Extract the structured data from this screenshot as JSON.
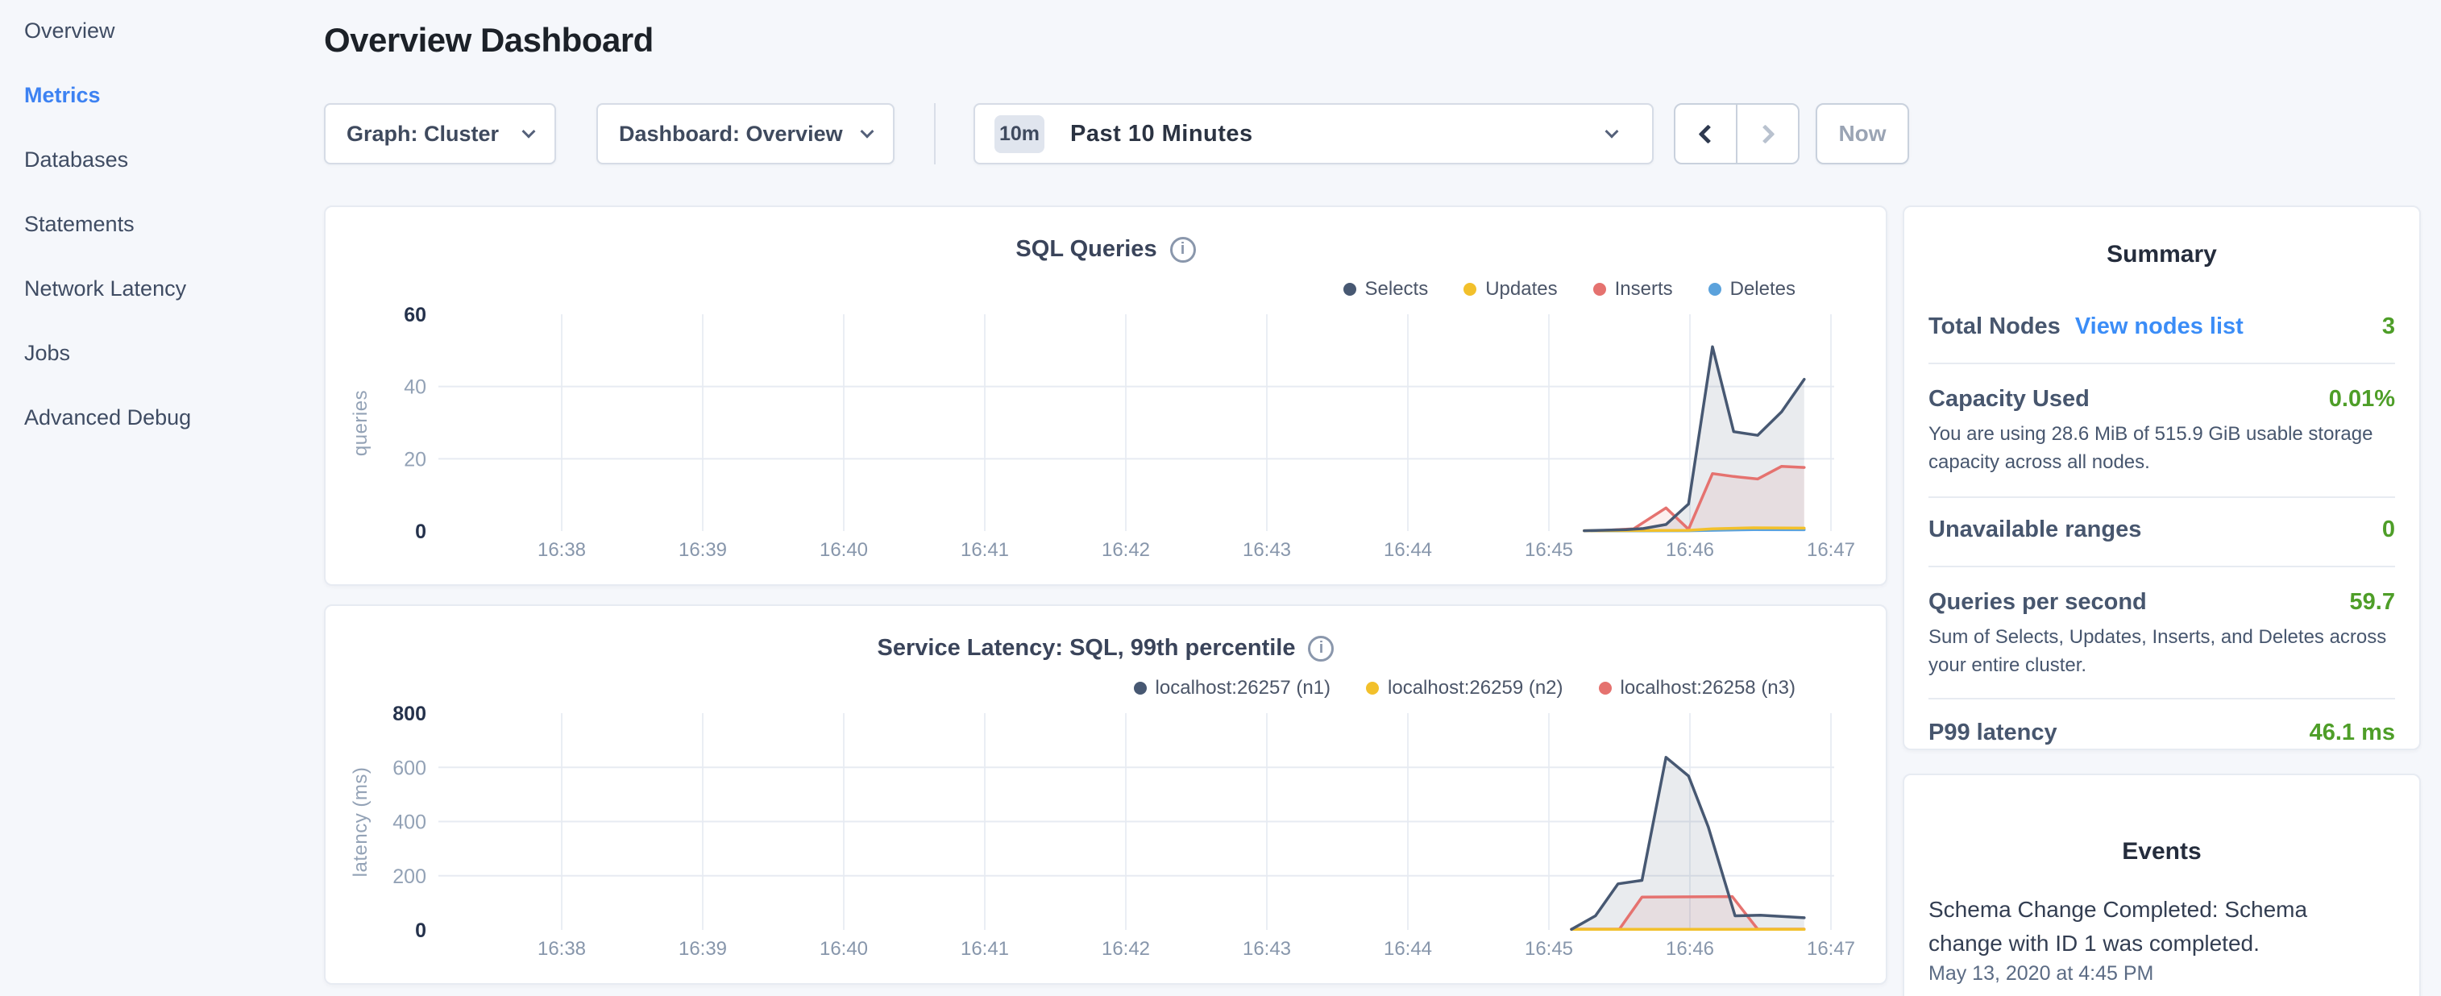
{
  "sidebar": {
    "items": [
      {
        "label": "Overview",
        "active": false
      },
      {
        "label": "Metrics",
        "active": true
      },
      {
        "label": "Databases",
        "active": false
      },
      {
        "label": "Statements",
        "active": false
      },
      {
        "label": "Network Latency",
        "active": false
      },
      {
        "label": "Jobs",
        "active": false
      },
      {
        "label": "Advanced Debug",
        "active": false
      }
    ]
  },
  "header": {
    "title": "Overview Dashboard"
  },
  "toolbar": {
    "graph_dropdown": {
      "label": "Graph: Cluster"
    },
    "dashboard_dropdown": {
      "label": "Dashboard: Overview"
    },
    "time_selector": {
      "badge": "10m",
      "label": "Past 10 Minutes"
    },
    "now_label": "Now",
    "icons": [
      "chevron-down-icon",
      "chevron-left-icon",
      "chevron-right-icon",
      "info-icon"
    ]
  },
  "summary": {
    "heading": "Summary",
    "rows": [
      {
        "label": "Total Nodes",
        "link": "View nodes list",
        "value": "3"
      },
      {
        "label": "Capacity Used",
        "value": "0.01%",
        "description": "You are using 28.6 MiB of 515.9 GiB usable storage capacity across all nodes."
      },
      {
        "label": "Unavailable ranges",
        "value": "0"
      },
      {
        "label": "Queries per second",
        "value": "59.7",
        "description": "Sum of Selects, Updates, Inserts, and Deletes across your entire cluster."
      },
      {
        "label": "P99 latency",
        "value": "46.1 ms"
      }
    ],
    "value_color": "#4e9e28",
    "link_color": "#3b8df7"
  },
  "events": {
    "heading": "Events",
    "items": [
      {
        "message": "Schema Change Completed: Schema change with ID 1 was completed.",
        "timestamp": "May 13, 2020 at 4:45 PM"
      }
    ]
  },
  "chart_data": [
    {
      "type": "line",
      "title": "SQL Queries",
      "ylabel": "queries",
      "ylim": [
        0,
        60
      ],
      "yticks": [
        0,
        20,
        40,
        60
      ],
      "xticks": [
        "16:38",
        "16:39",
        "16:40",
        "16:41",
        "16:42",
        "16:43",
        "16:44",
        "16:45",
        "16:46",
        "16:47"
      ],
      "x_unit": "minutes after 16:38",
      "grid": true,
      "legend_position": "top-right",
      "series": [
        {
          "name": "Selects",
          "color": "#475872",
          "fill": "rgba(71,88,114,0.12)",
          "points": [
            [
              7.25,
              0.1
            ],
            [
              7.55,
              0.4
            ],
            [
              7.67,
              0.7
            ],
            [
              7.83,
              1.8
            ],
            [
              7.99,
              7.5
            ],
            [
              8.16,
              51
            ],
            [
              8.31,
              27.5
            ],
            [
              8.48,
              26.5
            ],
            [
              8.65,
              33
            ],
            [
              8.81,
              42
            ]
          ]
        },
        {
          "name": "Updates",
          "color": "#f2c02b",
          "fill": "rgba(242,192,43,0.10)",
          "points": [
            [
              7.25,
              0.1
            ],
            [
              7.99,
              0.2
            ],
            [
              8.16,
              0.6
            ],
            [
              8.45,
              0.9
            ],
            [
              8.81,
              0.8
            ]
          ]
        },
        {
          "name": "Inserts",
          "color": "#e5726f",
          "fill": "rgba(229,114,111,0.11)",
          "points": [
            [
              7.35,
              0.1
            ],
            [
              7.6,
              0.6
            ],
            [
              7.83,
              6.4
            ],
            [
              7.99,
              0.5
            ],
            [
              8.16,
              15.9
            ],
            [
              8.31,
              15.1
            ],
            [
              8.48,
              14.4
            ],
            [
              8.65,
              17.9
            ],
            [
              8.81,
              17.6
            ]
          ]
        },
        {
          "name": "Deletes",
          "color": "#5ba2dc",
          "fill": "rgba(91,162,220,0.10)",
          "points": [
            [
              7.3,
              0.05
            ],
            [
              7.99,
              0.1
            ],
            [
              8.45,
              0.4
            ],
            [
              8.81,
              0.35
            ]
          ]
        }
      ]
    },
    {
      "type": "line",
      "title": "Service Latency: SQL, 99th percentile",
      "ylabel": "latency (ms)",
      "ylim": [
        0,
        800
      ],
      "yticks": [
        0,
        200,
        400,
        600,
        800
      ],
      "xticks": [
        "16:38",
        "16:39",
        "16:40",
        "16:41",
        "16:42",
        "16:43",
        "16:44",
        "16:45",
        "16:46",
        "16:47"
      ],
      "x_unit": "minutes after 16:38",
      "grid": true,
      "legend_position": "top-right",
      "series": [
        {
          "name": "localhost:26257 (n1)",
          "color": "#475872",
          "fill": "rgba(71,88,114,0.12)",
          "points": [
            [
              7.16,
              2
            ],
            [
              7.33,
              52
            ],
            [
              7.49,
              170
            ],
            [
              7.66,
              183
            ],
            [
              7.83,
              637
            ],
            [
              7.99,
              568
            ],
            [
              8.13,
              380
            ],
            [
              8.32,
              52
            ],
            [
              8.5,
              54
            ],
            [
              8.81,
              45
            ]
          ]
        },
        {
          "name": "localhost:26259 (n2)",
          "color": "#f2c02b",
          "fill": "rgba(242,192,43,0.10)",
          "points": [
            [
              7.16,
              2
            ],
            [
              8.81,
              2
            ]
          ]
        },
        {
          "name": "localhost:26258 (n3)",
          "color": "#e5726f",
          "fill": "rgba(229,114,111,0.11)",
          "points": [
            [
              7.16,
              3
            ],
            [
              7.5,
              3
            ],
            [
              7.66,
              121
            ],
            [
              8.3,
              123
            ],
            [
              8.48,
              3
            ],
            [
              8.81,
              3
            ]
          ]
        }
      ]
    }
  ]
}
